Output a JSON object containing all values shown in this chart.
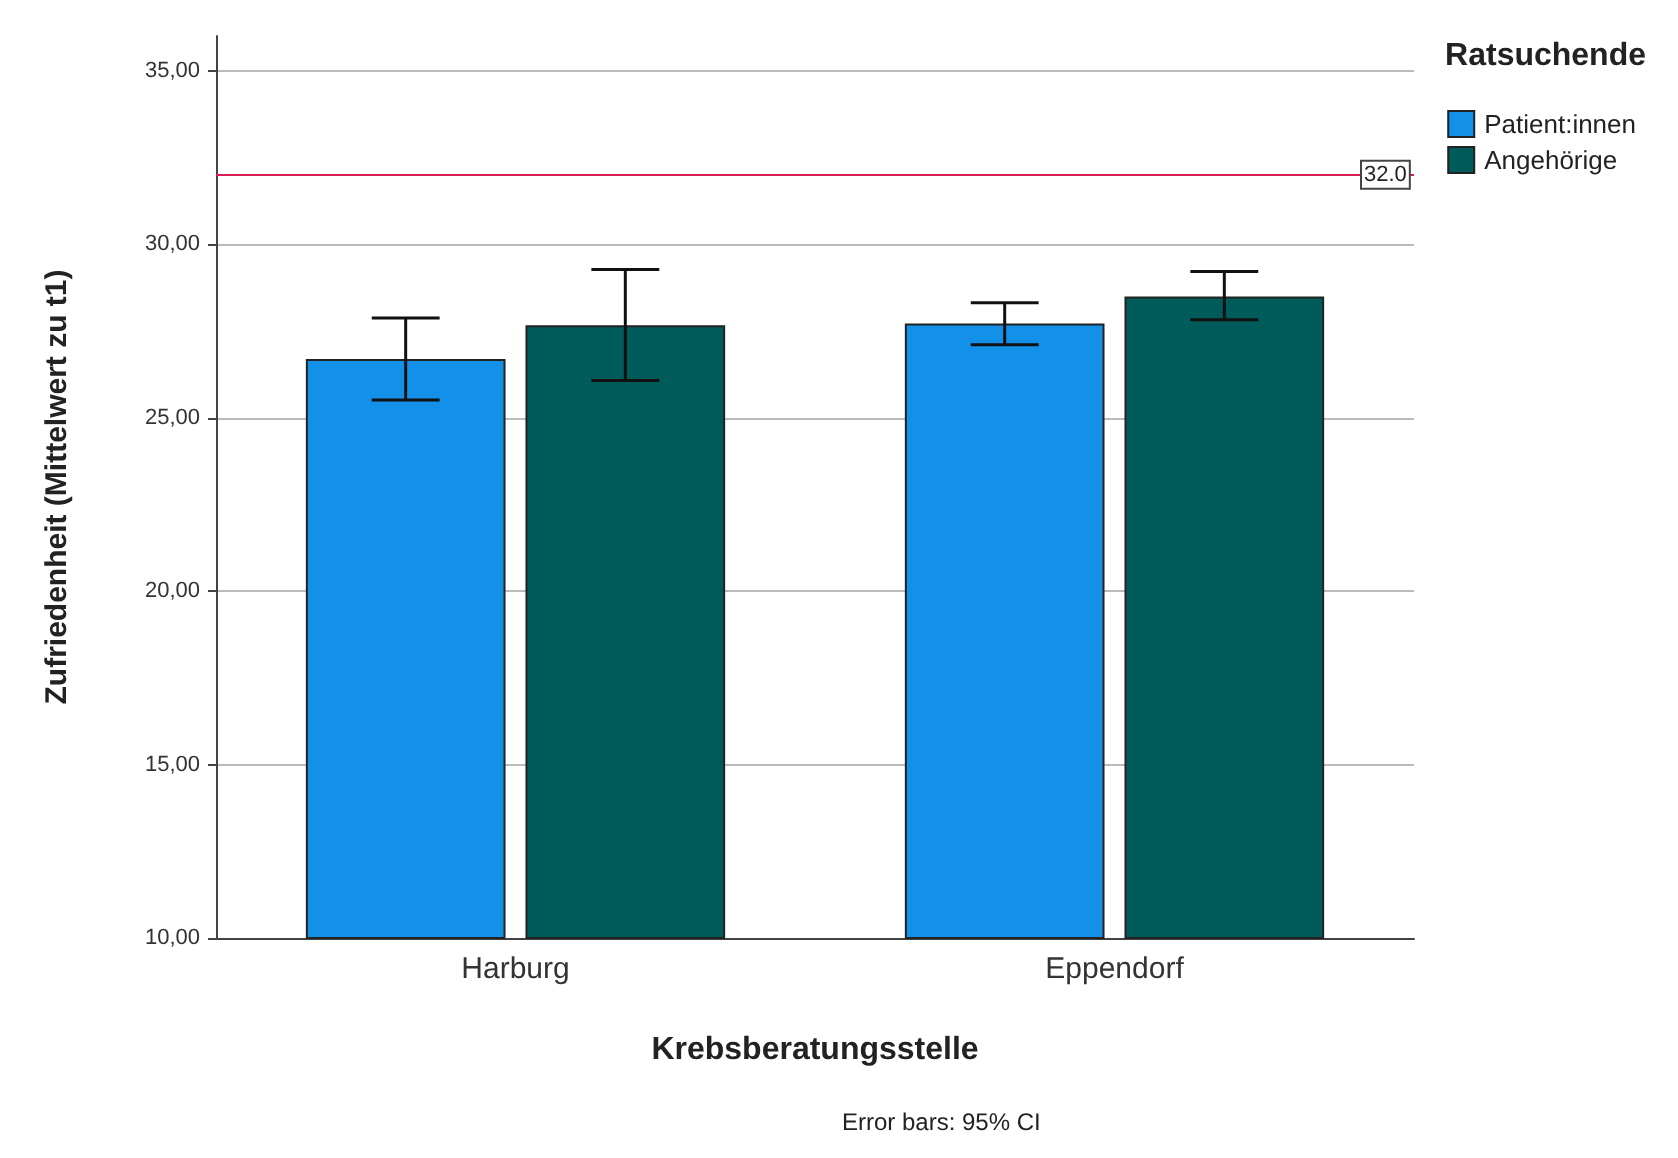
{
  "chart_data": {
    "type": "bar",
    "xlabel": "Krebsberatungsstelle",
    "ylabel": "Zufriedenheit (Mittelwert zu t1)",
    "legend_title": "Ratsuchende",
    "categories": [
      "Harburg",
      "Eppendorf"
    ],
    "series": [
      {
        "name": "Patient:innen",
        "color": "#1390e8",
        "values": [
          26.69,
          27.71
        ],
        "errors": [
          [
            25.51,
            27.87
          ],
          [
            27.1,
            28.31
          ]
        ]
      },
      {
        "name": "Angehörige",
        "color": "#005c5a",
        "values": [
          27.66,
          28.49
        ],
        "errors": [
          [
            26.07,
            29.27
          ],
          [
            27.82,
            29.21
          ]
        ]
      }
    ],
    "ylim": [
      10,
      36
    ],
    "yticks": [
      {
        "value": 10,
        "label": "10,00"
      },
      {
        "value": 15,
        "label": "15,00"
      },
      {
        "value": 20,
        "label": "20,00"
      },
      {
        "value": 25,
        "label": "25,00"
      },
      {
        "value": 30,
        "label": "30,00"
      },
      {
        "value": 35,
        "label": "35,00"
      }
    ],
    "grid": "y",
    "legend": "top right",
    "ref_lines": [
      {
        "axis": "y",
        "value": 32,
        "label": "32.0",
        "color": "#d81b50"
      }
    ],
    "annotations": [
      "Error bars: 95% CI"
    ]
  }
}
